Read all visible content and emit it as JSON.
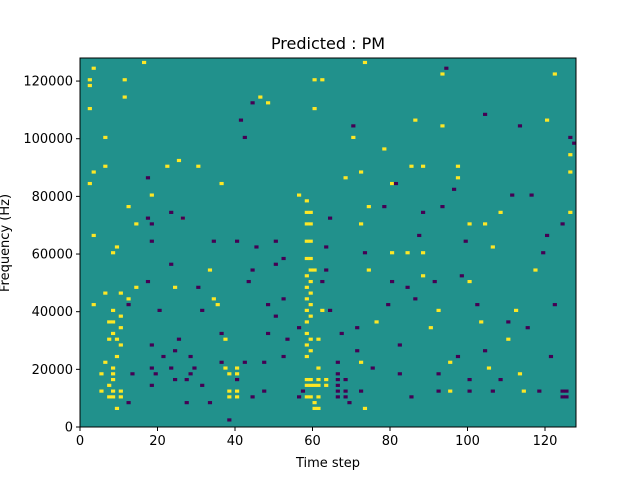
{
  "chart_data": {
    "type": "heatmap",
    "title": "Predicted : PM",
    "xlabel": "Time step",
    "ylabel": "Frequency (Hz)",
    "xlim": [
      0,
      128
    ],
    "ylim": [
      0,
      128000
    ],
    "xticks": [
      0,
      20,
      40,
      60,
      80,
      100,
      120
    ],
    "yticks": [
      0,
      20000,
      40000,
      60000,
      80000,
      100000,
      120000
    ],
    "n_time": 128,
    "n_freq": 128,
    "bin_hz": 1000,
    "grid": false,
    "legend": "none",
    "levels": {
      "low": -1,
      "background": 0,
      "high": 1
    },
    "colors": {
      "low": "#440154",
      "background": "#21918c",
      "high": "#fde725"
    },
    "cells": {
      "high": [
        [
          2,
          120
        ],
        [
          2,
          118
        ],
        [
          2,
          110
        ],
        [
          2,
          84
        ],
        [
          3,
          124
        ],
        [
          3,
          88
        ],
        [
          3,
          66
        ],
        [
          3,
          42
        ],
        [
          5,
          18
        ],
        [
          5,
          12
        ],
        [
          6,
          100
        ],
        [
          6,
          90
        ],
        [
          6,
          46
        ],
        [
          6,
          22
        ],
        [
          7,
          36
        ],
        [
          7,
          30
        ],
        [
          7,
          14
        ],
        [
          7,
          10
        ],
        [
          8,
          60
        ],
        [
          8,
          40
        ],
        [
          8,
          36
        ],
        [
          8,
          32
        ],
        [
          8,
          20
        ],
        [
          8,
          18
        ],
        [
          8,
          16
        ],
        [
          8,
          12
        ],
        [
          8,
          10
        ],
        [
          9,
          62
        ],
        [
          9,
          30
        ],
        [
          9,
          24
        ],
        [
          9,
          6
        ],
        [
          10,
          46
        ],
        [
          10,
          38
        ],
        [
          10,
          34
        ],
        [
          10,
          28
        ],
        [
          10,
          12
        ],
        [
          10,
          10
        ],
        [
          11,
          120
        ],
        [
          11,
          114
        ],
        [
          12,
          76
        ],
        [
          12,
          44
        ],
        [
          14,
          70
        ],
        [
          14,
          48
        ],
        [
          16,
          126
        ],
        [
          18,
          80
        ],
        [
          22,
          90
        ],
        [
          24,
          48
        ],
        [
          25,
          92
        ],
        [
          26,
          72
        ],
        [
          30,
          90
        ],
        [
          33,
          54
        ],
        [
          34,
          44
        ],
        [
          35,
          42
        ],
        [
          36,
          84
        ],
        [
          37,
          30
        ],
        [
          37,
          20
        ],
        [
          38,
          18
        ],
        [
          38,
          12
        ],
        [
          38,
          10
        ],
        [
          40,
          20
        ],
        [
          40,
          18
        ],
        [
          40,
          12
        ],
        [
          40,
          10
        ],
        [
          46,
          114
        ],
        [
          48,
          112
        ],
        [
          56,
          80
        ],
        [
          58,
          78
        ],
        [
          58,
          74
        ],
        [
          58,
          70
        ],
        [
          58,
          64
        ],
        [
          58,
          58
        ],
        [
          58,
          52
        ],
        [
          58,
          48
        ],
        [
          58,
          44
        ],
        [
          58,
          40
        ],
        [
          58,
          36
        ],
        [
          58,
          32
        ],
        [
          58,
          28
        ],
        [
          58,
          24
        ],
        [
          58,
          16
        ],
        [
          58,
          14
        ],
        [
          58,
          10
        ],
        [
          59,
          74
        ],
        [
          59,
          70
        ],
        [
          59,
          64
        ],
        [
          59,
          58
        ],
        [
          59,
          54
        ],
        [
          59,
          50
        ],
        [
          59,
          46
        ],
        [
          59,
          42
        ],
        [
          59,
          38
        ],
        [
          59,
          30
        ],
        [
          59,
          26
        ],
        [
          59,
          16
        ],
        [
          59,
          14
        ],
        [
          59,
          10
        ],
        [
          60,
          120
        ],
        [
          60,
          110
        ],
        [
          60,
          54
        ],
        [
          60,
          14
        ],
        [
          60,
          8
        ],
        [
          60,
          6
        ],
        [
          61,
          30
        ],
        [
          61,
          20
        ],
        [
          61,
          16
        ],
        [
          61,
          14
        ],
        [
          61,
          10
        ],
        [
          61,
          6
        ],
        [
          62,
          120
        ],
        [
          62,
          40
        ],
        [
          63,
          16
        ],
        [
          63,
          14
        ],
        [
          68,
          86
        ],
        [
          70,
          100
        ],
        [
          72,
          88
        ],
        [
          72,
          70
        ],
        [
          72,
          22
        ],
        [
          73,
          126
        ],
        [
          73,
          6
        ],
        [
          74,
          76
        ],
        [
          74,
          54
        ],
        [
          76,
          36
        ],
        [
          78,
          96
        ],
        [
          80,
          84
        ],
        [
          80,
          60
        ],
        [
          84,
          60
        ],
        [
          85,
          90
        ],
        [
          86,
          106
        ],
        [
          88,
          90
        ],
        [
          88,
          60
        ],
        [
          88,
          52
        ],
        [
          90,
          34
        ],
        [
          92,
          40
        ],
        [
          93,
          122
        ],
        [
          93,
          104
        ],
        [
          95,
          22
        ],
        [
          95,
          12
        ],
        [
          97,
          90
        ],
        [
          97,
          86
        ],
        [
          100,
          70
        ],
        [
          100,
          50
        ],
        [
          103,
          36
        ],
        [
          104,
          70
        ],
        [
          105,
          20
        ],
        [
          106,
          62
        ],
        [
          108,
          74
        ],
        [
          110,
          30
        ],
        [
          112,
          40
        ],
        [
          113,
          18
        ],
        [
          114,
          12
        ],
        [
          117,
          54
        ],
        [
          120,
          106
        ],
        [
          122,
          122
        ],
        [
          126,
          74
        ],
        [
          126,
          88
        ],
        [
          126,
          94
        ]
      ],
      "low": [
        [
          12,
          42
        ],
        [
          12,
          8
        ],
        [
          13,
          18
        ],
        [
          17,
          86
        ],
        [
          17,
          72
        ],
        [
          17,
          50
        ],
        [
          18,
          70
        ],
        [
          18,
          64
        ],
        [
          18,
          28
        ],
        [
          18,
          20
        ],
        [
          18,
          14
        ],
        [
          19,
          18
        ],
        [
          20,
          40
        ],
        [
          21,
          24
        ],
        [
          23,
          74
        ],
        [
          23,
          56
        ],
        [
          23,
          20
        ],
        [
          24,
          26
        ],
        [
          24,
          16
        ],
        [
          25,
          30
        ],
        [
          26,
          72
        ],
        [
          27,
          16
        ],
        [
          27,
          8
        ],
        [
          28,
          24
        ],
        [
          28,
          18
        ],
        [
          29,
          20
        ],
        [
          30,
          48
        ],
        [
          31,
          40
        ],
        [
          31,
          14
        ],
        [
          33,
          8
        ],
        [
          34,
          64
        ],
        [
          36,
          32
        ],
        [
          36,
          22
        ],
        [
          38,
          2
        ],
        [
          40,
          16
        ],
        [
          40,
          64
        ],
        [
          41,
          106
        ],
        [
          42,
          100
        ],
        [
          42,
          22
        ],
        [
          43,
          50
        ],
        [
          44,
          112
        ],
        [
          44,
          54
        ],
        [
          44,
          10
        ],
        [
          45,
          62
        ],
        [
          47,
          22
        ],
        [
          47,
          12
        ],
        [
          48,
          42
        ],
        [
          48,
          32
        ],
        [
          50,
          64
        ],
        [
          50,
          56
        ],
        [
          50,
          38
        ],
        [
          52,
          58
        ],
        [
          52,
          44
        ],
        [
          52,
          24
        ],
        [
          53,
          30
        ],
        [
          56,
          34
        ],
        [
          56,
          10
        ],
        [
          57,
          12
        ],
        [
          62,
          50
        ],
        [
          63,
          62
        ],
        [
          63,
          54
        ],
        [
          64,
          72
        ],
        [
          64,
          40
        ],
        [
          66,
          22
        ],
        [
          66,
          18
        ],
        [
          66,
          16
        ],
        [
          66,
          14
        ],
        [
          66,
          12
        ],
        [
          66,
          10
        ],
        [
          67,
          32
        ],
        [
          68,
          16
        ],
        [
          68,
          12
        ],
        [
          68,
          10
        ],
        [
          69,
          8
        ],
        [
          70,
          104
        ],
        [
          71,
          34
        ],
        [
          71,
          26
        ],
        [
          72,
          12
        ],
        [
          73,
          60
        ],
        [
          75,
          20
        ],
        [
          78,
          76
        ],
        [
          79,
          42
        ],
        [
          80,
          50
        ],
        [
          81,
          84
        ],
        [
          82,
          28
        ],
        [
          82,
          18
        ],
        [
          84,
          48
        ],
        [
          85,
          10
        ],
        [
          86,
          44
        ],
        [
          87,
          66
        ],
        [
          88,
          74
        ],
        [
          91,
          50
        ],
        [
          92,
          18
        ],
        [
          92,
          12
        ],
        [
          93,
          76
        ],
        [
          94,
          124
        ],
        [
          96,
          82
        ],
        [
          97,
          24
        ],
        [
          98,
          52
        ],
        [
          99,
          64
        ],
        [
          100,
          16
        ],
        [
          100,
          12
        ],
        [
          102,
          42
        ],
        [
          104,
          108
        ],
        [
          104,
          26
        ],
        [
          106,
          12
        ],
        [
          108,
          16
        ],
        [
          110,
          36
        ],
        [
          111,
          80
        ],
        [
          113,
          104
        ],
        [
          115,
          34
        ],
        [
          116,
          80
        ],
        [
          118,
          12
        ],
        [
          119,
          60
        ],
        [
          120,
          66
        ],
        [
          121,
          24
        ],
        [
          122,
          42
        ],
        [
          124,
          70
        ],
        [
          124,
          12
        ],
        [
          124,
          10
        ],
        [
          125,
          12
        ],
        [
          125,
          10
        ],
        [
          126,
          100
        ],
        [
          127,
          98
        ]
      ]
    }
  }
}
